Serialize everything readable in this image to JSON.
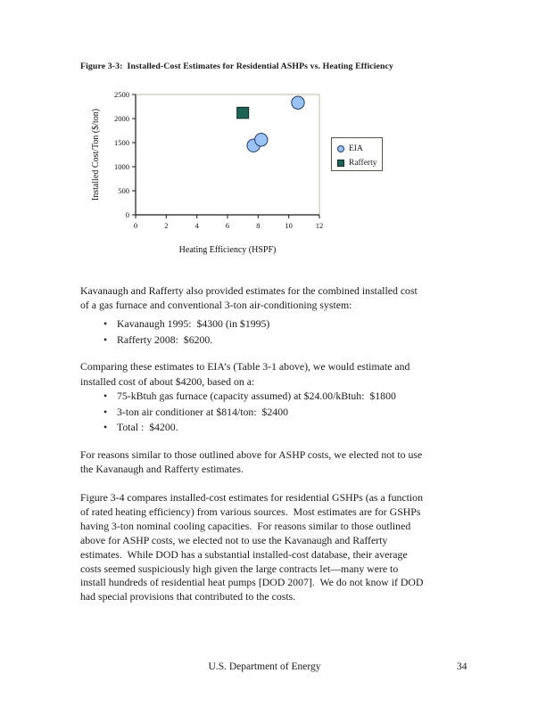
{
  "figure": {
    "title": "Figure 3-3:  Installed-Cost Estimates for Residential ASHPs vs. Heating Efficiency"
  },
  "bullet_char": "•",
  "paragraphs": {
    "p1": {
      "lines": [
        "Kavanaugh and Rafferty also provided estimates for the combined installed cost",
        "of a gas furnace and conventional 3-ton air-conditioning system:"
      ]
    },
    "list1": {
      "items": [
        "Kavanaugh 1995:  $4300 (in $1995)",
        "Rafferty 2008:  $6200."
      ]
    },
    "p2": {
      "lines": [
        "Comparing these estimates to EIA’s (Table 3-1 above), we would estimate and",
        "installed cost of about $4200, based on a:"
      ]
    },
    "list2": {
      "items": [
        "75-kBtuh gas furnace (capacity assumed) at $24.00/kBtuh:  $1800",
        "3-ton air conditioner at $814/ton:  $2400",
        "Total :  $4200."
      ]
    },
    "p3": {
      "lines": [
        "For reasons similar to those outlined above for ASHP costs, we elected not to use",
        "the Kavanaugh and Rafferty estimates."
      ]
    },
    "p4": {
      "lines": [
        "Figure 3-4 compares installed-cost estimates for residential GSHPs (as a function",
        "of rated heating efficiency) from various sources.  Most estimates are for GSHPs",
        "having 3-ton nominal cooling capacities.  For reasons similar to those outlined",
        "above for ASHP costs, we elected not to use the Kavanaugh and Rafferty",
        "estimates.  While DOD has a substantial installed-cost database, their average",
        "costs seemed suspiciously high given the large contracts let—many were to",
        "install hundreds of residential heat pumps [DOD 2007].  We do not know if DOD",
        "had special provisions that contributed to the costs."
      ]
    }
  },
  "footer": {
    "center": "U.S. Department of Energy",
    "page_number": "34"
  },
  "chart_data": {
    "type": "scatter",
    "title": "",
    "xlabel": "Heating Efficiency (HSPF)",
    "ylabel": "Installed Cost/Ton ($/ton)",
    "xlim": [
      0,
      12
    ],
    "ylim": [
      0,
      2500
    ],
    "x_ticks": [
      0,
      2,
      4,
      6,
      8,
      10,
      12
    ],
    "y_ticks": [
      0,
      500,
      1000,
      1500,
      2000,
      2500
    ],
    "grid": false,
    "legend_position": "right",
    "axis_color": "#1a1a1a",
    "frame_color": "#bdbdab",
    "series": [
      {
        "name": "EIA",
        "marker": "circle",
        "fill": "#9cc3f5",
        "stroke": "#1f3864",
        "points": [
          [
            7.7,
            1440
          ],
          [
            8.2,
            1560
          ],
          [
            10.6,
            2330
          ]
        ]
      },
      {
        "name": "Rafferty",
        "marker": "square",
        "fill": "#1e6456",
        "stroke": "#0a2b24",
        "points": [
          [
            7.0,
            2120
          ]
        ]
      }
    ]
  }
}
